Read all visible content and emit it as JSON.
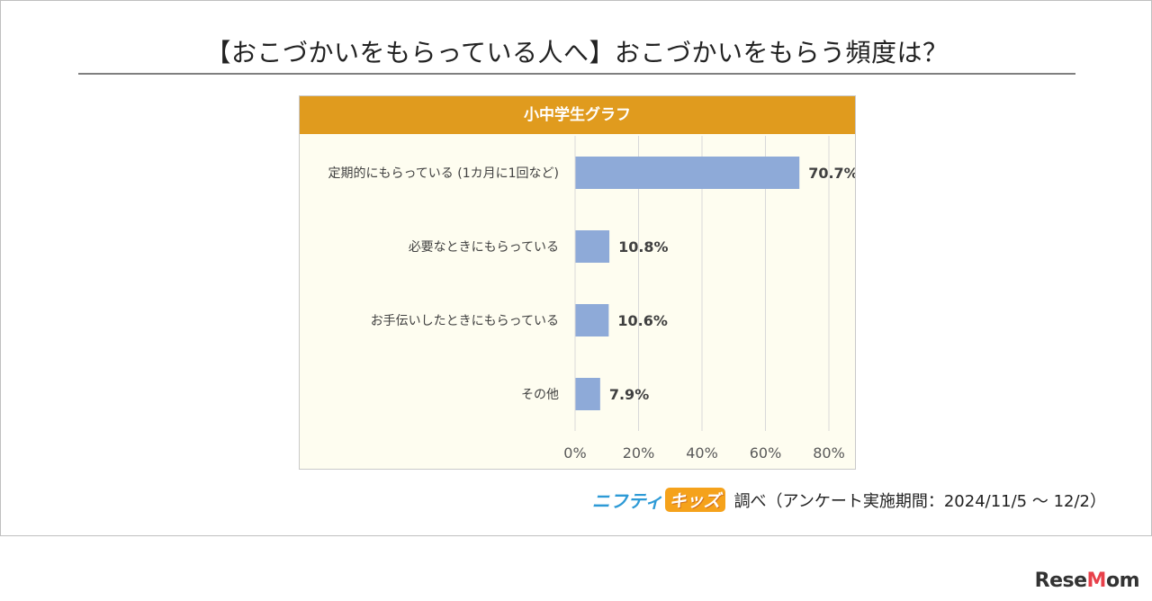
{
  "title": "【おこづかいをもらっている人へ】おこづかいをもらう頻度は？",
  "source": {
    "brand_part1": "ニフティ",
    "brand_part2": "キッズ",
    "text": "調べ（アンケート実施期間：2024/11/5 ～ 12/2）"
  },
  "watermark": {
    "part1": "Rese",
    "part2": "M",
    "part3": "om"
  },
  "chart_data": {
    "type": "bar",
    "orientation": "horizontal",
    "title": "小中学生グラフ",
    "categories": [
      "定期的にもらっている (1カ月に1回など)",
      "必要なときにもらっている",
      "お手伝いしたときにもらっている",
      "その他"
    ],
    "values": [
      70.7,
      10.8,
      10.6,
      7.9
    ],
    "value_labels": [
      "70.7%",
      "10.8%",
      "10.6%",
      "7.9%"
    ],
    "unit": "%",
    "xlim": [
      0,
      80
    ],
    "xticks": [
      0,
      20,
      40,
      60,
      80
    ],
    "xtick_labels": [
      "0%",
      "20%",
      "40%",
      "60%",
      "80%"
    ],
    "grid": "vertical",
    "bar_color": "#8eaad8",
    "header_color": "#e09b1e",
    "background_color": "#fefdf0"
  }
}
